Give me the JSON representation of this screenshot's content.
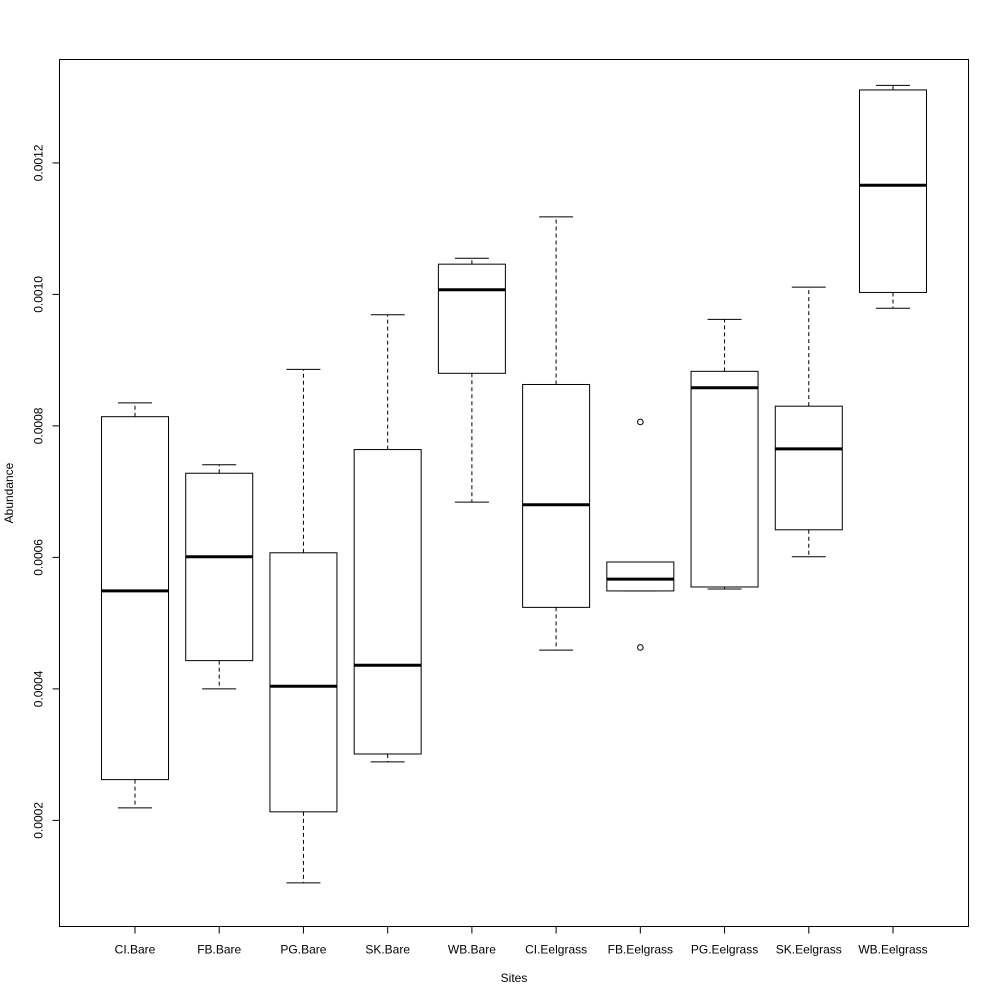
{
  "chart_data": {
    "type": "boxplot",
    "title": "",
    "xlabel": "Sites",
    "ylabel": "Abundance",
    "ylim": [
      3.86e-05,
      0.0013573
    ],
    "yticks": [
      0.0002,
      0.0004,
      0.0006,
      0.0008,
      0.001,
      0.0012
    ],
    "ytick_labels": [
      "0.0002",
      "0.0004",
      "0.0006",
      "0.0008",
      "0.0010",
      "0.0012"
    ],
    "grid": false,
    "legend": "none",
    "categories": [
      "CI.Bare",
      "FB.Bare",
      "PG.Bare",
      "SK.Bare",
      "WB.Bare",
      "CI.Eelgrass",
      "FB.Eelgrass",
      "PG.Eelgrass",
      "SK.Eelgrass",
      "WB.Eelgrass"
    ],
    "boxes": [
      {
        "category": "CI.Bare",
        "whisker_low": 0.000219,
        "q1": 0.000262,
        "median": 0.000549,
        "q3": 0.000814,
        "whisker_high": 0.000835,
        "outliers": []
      },
      {
        "category": "FB.Bare",
        "whisker_low": 0.0004,
        "q1": 0.000443,
        "median": 0.000601,
        "q3": 0.000728,
        "whisker_high": 0.000741,
        "outliers": []
      },
      {
        "category": "PG.Bare",
        "whisker_low": 0.000105,
        "q1": 0.000213,
        "median": 0.000404,
        "q3": 0.000607,
        "whisker_high": 0.000886,
        "outliers": []
      },
      {
        "category": "SK.Bare",
        "whisker_low": 0.000289,
        "q1": 0.000301,
        "median": 0.000436,
        "q3": 0.000764,
        "whisker_high": 0.000969,
        "outliers": []
      },
      {
        "category": "WB.Bare",
        "whisker_low": 0.000684,
        "q1": 0.00088,
        "median": 0.001007,
        "q3": 0.001046,
        "whisker_high": 0.001055,
        "outliers": []
      },
      {
        "category": "CI.Eelgrass",
        "whisker_low": 0.000459,
        "q1": 0.000524,
        "median": 0.00068,
        "q3": 0.000863,
        "whisker_high": 0.001118,
        "outliers": []
      },
      {
        "category": "FB.Eelgrass",
        "whisker_low": 0.000549,
        "q1": 0.000549,
        "median": 0.000567,
        "q3": 0.000593,
        "whisker_high": 0.000593,
        "outliers": [
          0.000806,
          0.000463
        ]
      },
      {
        "category": "PG.Eelgrass",
        "whisker_low": 0.000552,
        "q1": 0.000555,
        "median": 0.000858,
        "q3": 0.000883,
        "whisker_high": 0.000962,
        "outliers": []
      },
      {
        "category": "SK.Eelgrass",
        "whisker_low": 0.000601,
        "q1": 0.000642,
        "median": 0.000765,
        "q3": 0.00083,
        "whisker_high": 0.001011,
        "outliers": []
      },
      {
        "category": "WB.Eelgrass",
        "whisker_low": 0.000979,
        "q1": 0.001003,
        "median": 0.001166,
        "q3": 0.001311,
        "whisker_high": 0.001318,
        "outliers": []
      }
    ]
  }
}
